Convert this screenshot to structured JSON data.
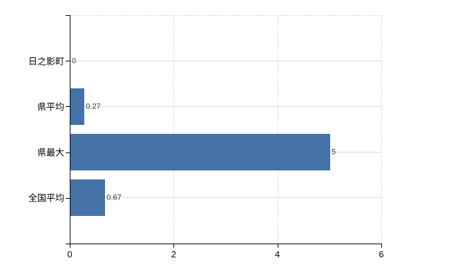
{
  "chart_data": {
    "type": "bar",
    "orientation": "horizontal",
    "title": "",
    "categories": [
      "日之影町",
      "県平均",
      "県最大",
      "全国平均"
    ],
    "values": [
      0,
      0.27,
      5,
      0.67
    ],
    "value_labels": [
      "0",
      "0.27",
      "5",
      "0.67"
    ],
    "xlim": [
      0,
      6
    ],
    "x_ticks": [
      0,
      2,
      4,
      6
    ],
    "x_tick_labels": [
      "0",
      "2",
      "4",
      "6"
    ],
    "grid": true,
    "legend_position": "none",
    "colors": {
      "bar": "#4572a7",
      "gridline": "#d6ded6",
      "axis": "#000000",
      "value_label": "#333333",
      "category_label": "#000000",
      "tick_label": "#000000",
      "background": "#ffffff"
    }
  }
}
